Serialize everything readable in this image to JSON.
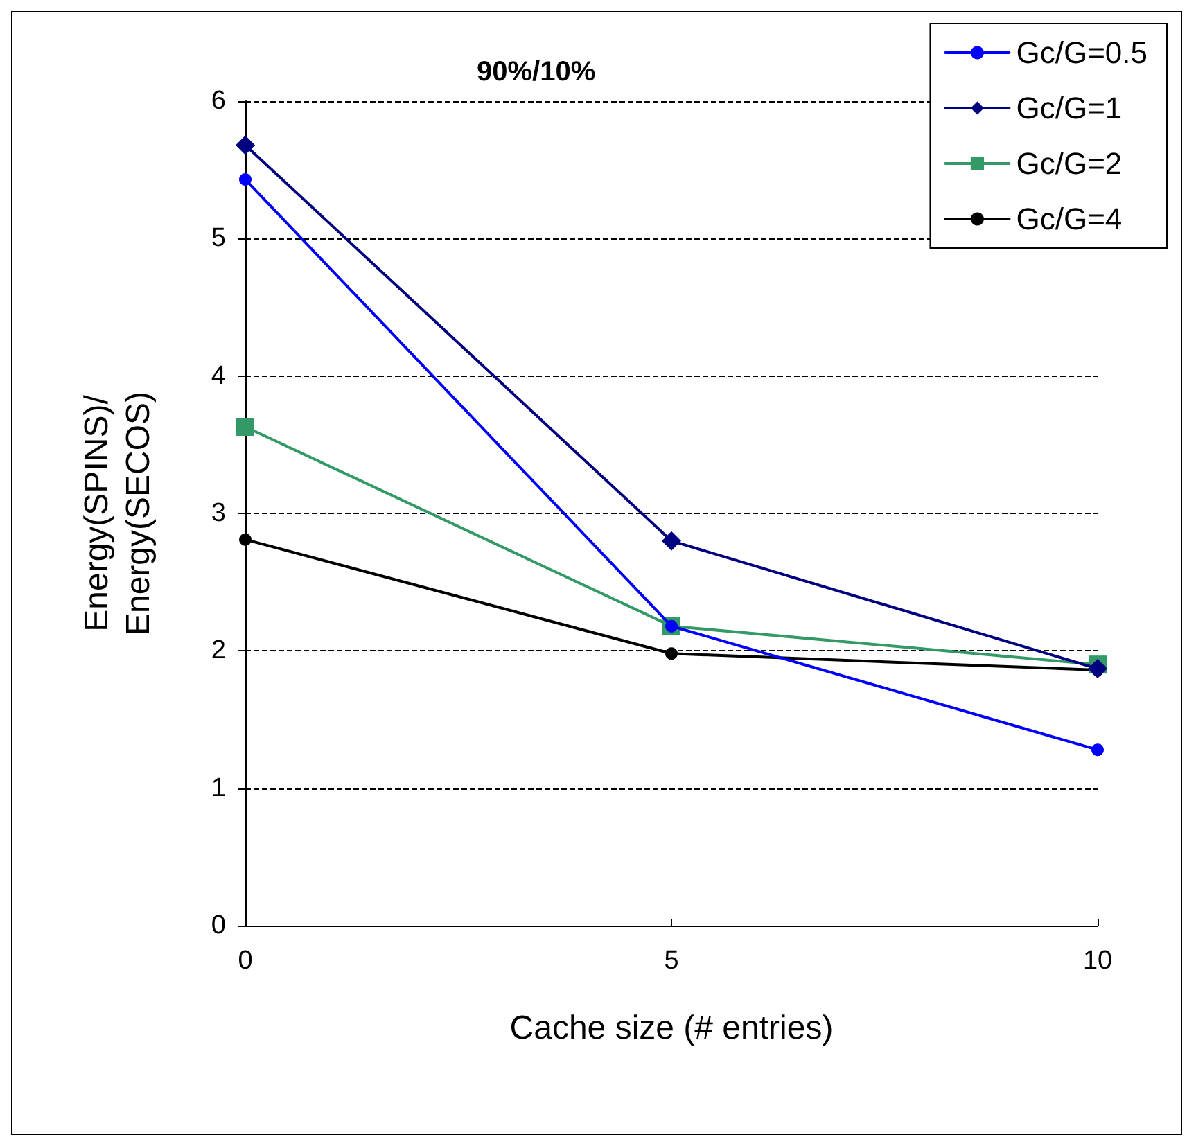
{
  "chart_data": {
    "type": "line",
    "title": "90%/10%",
    "xlabel": "Cache size (# entries)",
    "ylabel": "Energy(SPINS)/\nEnergy(SECOS)",
    "x": [
      0,
      5,
      10
    ],
    "xlim": [
      0,
      10
    ],
    "xticks": [
      0,
      5,
      10
    ],
    "ylim": [
      0,
      6
    ],
    "yticks": [
      0,
      1,
      2,
      3,
      4,
      5,
      6
    ],
    "grid": "y",
    "legend": "top right",
    "line_style": "solid",
    "series": [
      {
        "name": "Gc/G=0.5",
        "color": "#0000ff",
        "marker": "circle",
        "values": [
          5.43,
          2.18,
          1.28
        ]
      },
      {
        "name": "Gc/G=1",
        "color": "#000080",
        "marker": "diamond",
        "values": [
          5.68,
          2.8,
          1.87
        ]
      },
      {
        "name": "Gc/G=2",
        "color": "#339966",
        "marker": "square",
        "values": [
          3.63,
          2.18,
          1.9
        ]
      },
      {
        "name": "Gc/G=4",
        "color": "#000000",
        "marker": "circle",
        "values": [
          2.81,
          1.98,
          1.86
        ]
      }
    ]
  }
}
